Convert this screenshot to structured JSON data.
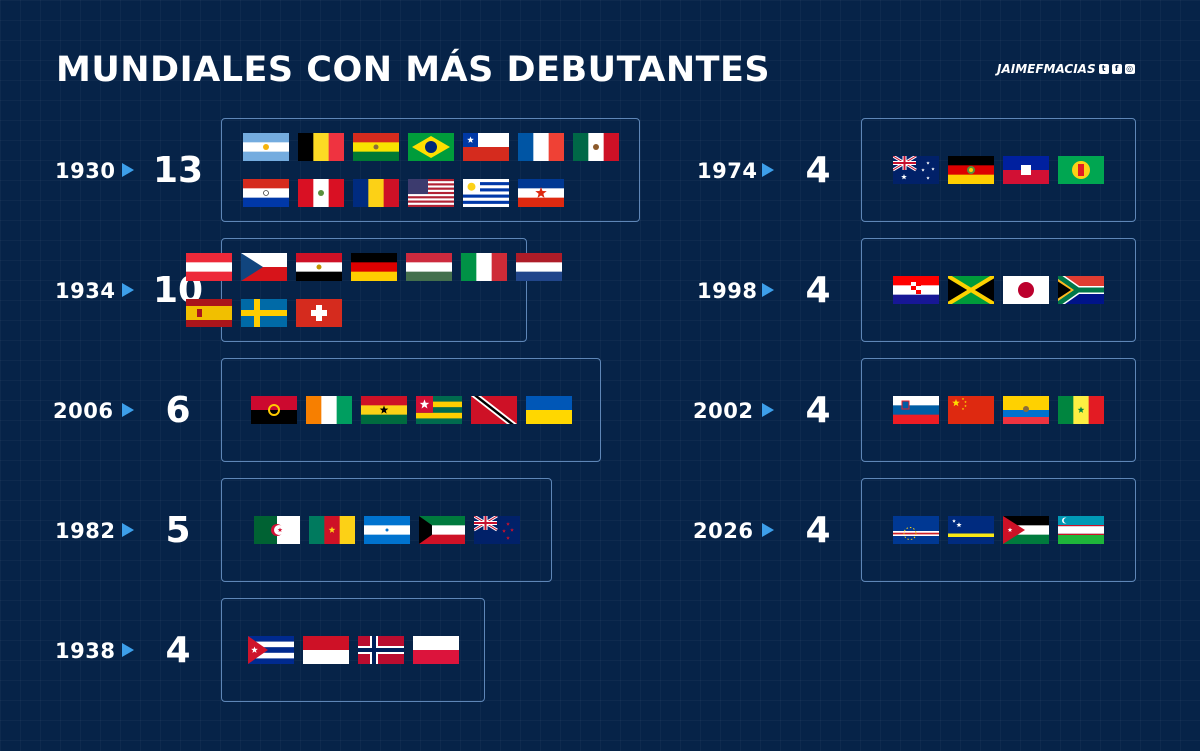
{
  "title": "MUNDIALES CON MÁS DEBUTANTES",
  "brand": {
    "name": "JAIMEFMACIAS",
    "icons": [
      "twitter-icon",
      "facebook-icon",
      "instagram-icon"
    ]
  },
  "left_column": [
    {
      "year": "1930",
      "count": "13",
      "flags": [
        "argentina",
        "belgium",
        "bolivia",
        "brazil",
        "chile",
        "france",
        "mexico",
        "paraguay",
        "peru",
        "romania",
        "usa",
        "uruguay",
        "yugoslavia"
      ]
    },
    {
      "year": "1934",
      "count": "10",
      "flags": [
        "austria",
        "czechoslovakia",
        "egypt",
        "germany",
        "hungary",
        "italy",
        "netherlands",
        "spain",
        "sweden",
        "switzerland"
      ]
    },
    {
      "year": "2006",
      "count": "6",
      "flags": [
        "angola",
        "ivory-coast",
        "ghana",
        "togo",
        "trinidad-tobago",
        "ukraine"
      ]
    },
    {
      "year": "1982",
      "count": "5",
      "flags": [
        "algeria",
        "cameroon",
        "honduras",
        "kuwait",
        "new-zealand"
      ]
    },
    {
      "year": "1938",
      "count": "4",
      "flags": [
        "cuba",
        "indonesia",
        "norway",
        "poland"
      ]
    }
  ],
  "right_column": [
    {
      "year": "1974",
      "count": "4",
      "flags": [
        "australia",
        "east-germany",
        "haiti",
        "zaire"
      ]
    },
    {
      "year": "1998",
      "count": "4",
      "flags": [
        "croatia",
        "jamaica",
        "japan",
        "south-africa"
      ]
    },
    {
      "year": "2002",
      "count": "4",
      "flags": [
        "slovenia",
        "china",
        "ecuador",
        "senegal"
      ]
    },
    {
      "year": "2026",
      "count": "4",
      "flags": [
        "cape-verde",
        "curacao",
        "jordan",
        "uzbekistan"
      ]
    }
  ],
  "colors": {
    "background": "#062348",
    "accent": "#3d9fea",
    "border": "#5e86b7"
  }
}
